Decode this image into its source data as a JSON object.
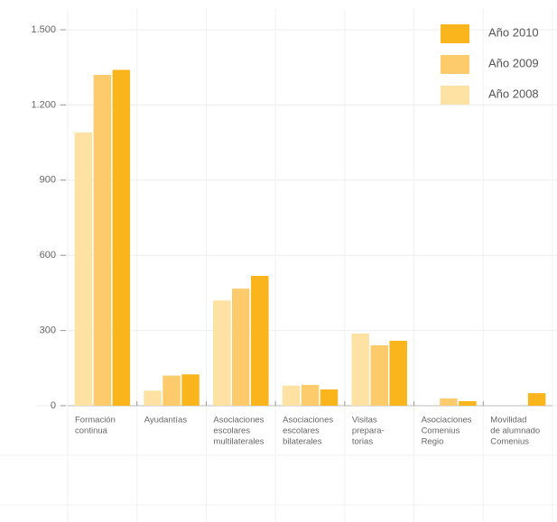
{
  "chart_data": {
    "type": "bar",
    "categories": [
      [
        "Formación",
        "continua"
      ],
      [
        "Ayudantías"
      ],
      [
        "Asociaciones",
        "escolares",
        "multilaterales"
      ],
      [
        "Asociaciones",
        "escolares",
        "bilaterales"
      ],
      [
        "Visitas",
        "prepara-",
        "torias"
      ],
      [
        "Asociaciones",
        "Comenius",
        "Regio"
      ],
      [
        "Movilidad",
        "de alumnado",
        "Comenius"
      ]
    ],
    "series": [
      {
        "name": "Año 2008",
        "color": "#fde2a4",
        "values": [
          1090,
          60,
          420,
          80,
          288,
          null,
          null
        ]
      },
      {
        "name": "Año 2009",
        "color": "#fdcb6b",
        "values": [
          1320,
          120,
          467,
          83,
          241,
          29,
          null
        ]
      },
      {
        "name": "Año 2010",
        "color": "#f9b51b",
        "values": [
          1340,
          125,
          518,
          65,
          259,
          18,
          50
        ]
      }
    ],
    "ylim": [
      0,
      1500
    ],
    "yticks": [
      0,
      300,
      600,
      900,
      {
        "value": 1200,
        "label": "1.200"
      },
      {
        "value": 1500,
        "label": "1.500"
      }
    ],
    "grid": true
  }
}
